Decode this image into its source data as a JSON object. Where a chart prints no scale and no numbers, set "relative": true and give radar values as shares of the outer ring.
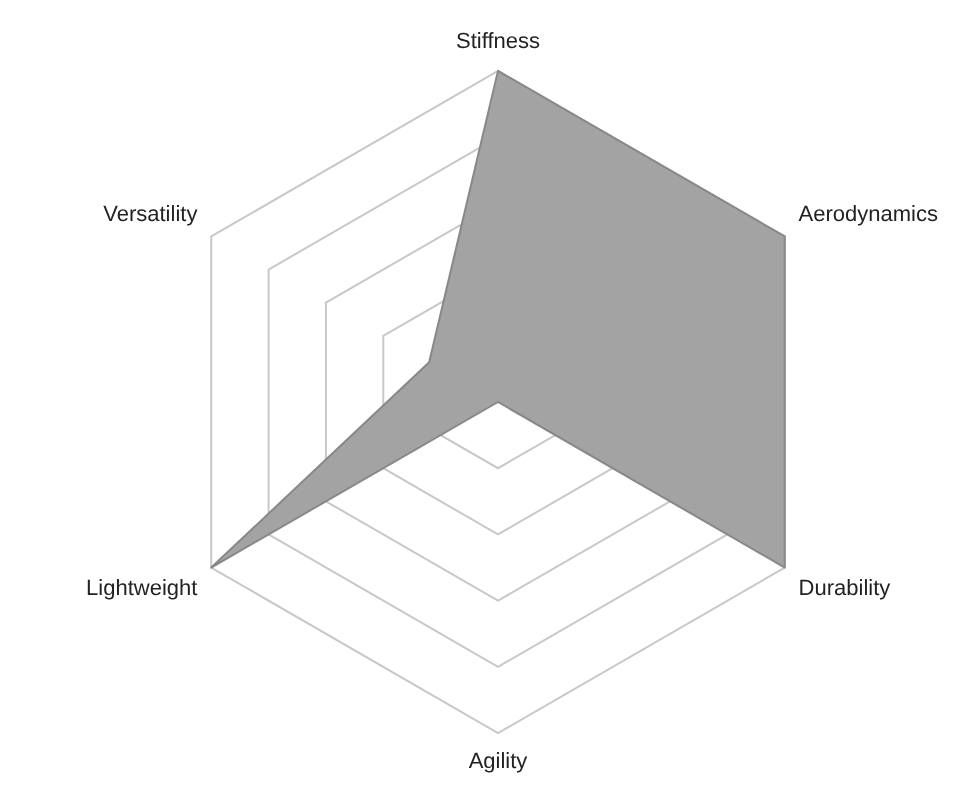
{
  "chart_data": {
    "type": "radar",
    "relative": true,
    "categories": [
      "Stiffness",
      "Aerodynamics",
      "Durability",
      "Agility",
      "Lightweight",
      "Versatility"
    ],
    "series": [
      {
        "color": "#a3a3a3",
        "values": [
          1,
          1,
          1,
          0,
          1,
          0.24
        ]
      }
    ],
    "grid": true,
    "legend": false,
    "marker": "none"
  }
}
